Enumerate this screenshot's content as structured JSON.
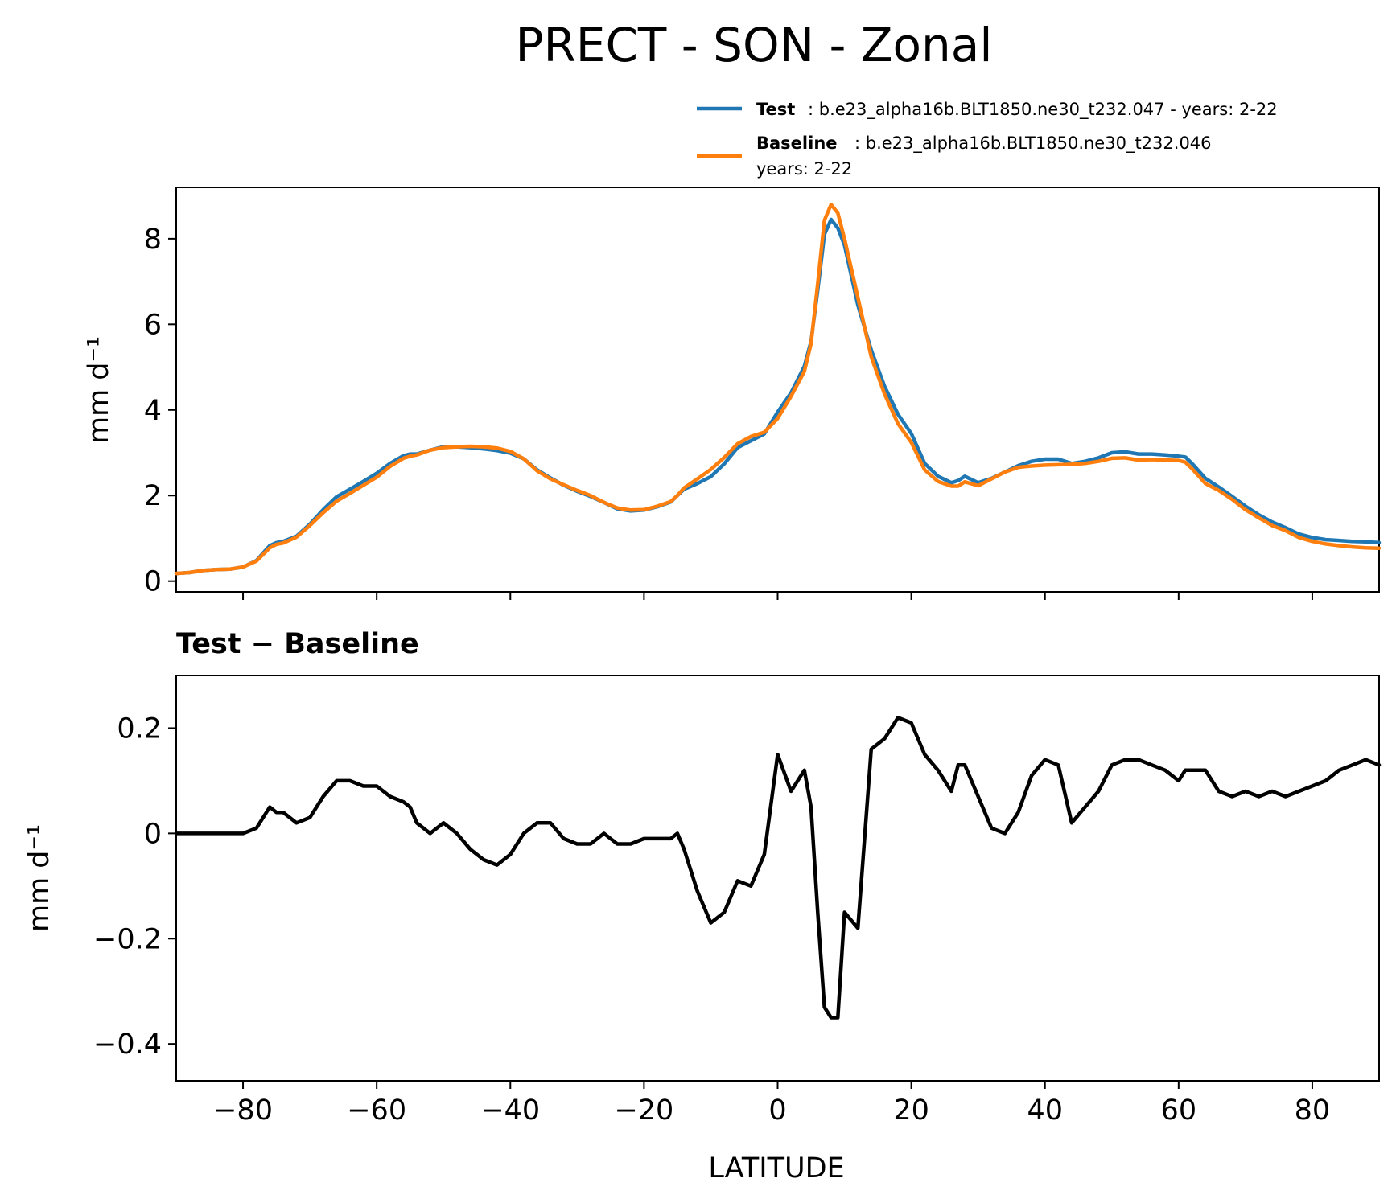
{
  "title": "PRECT - SON - Zonal",
  "legend": {
    "test": {
      "name": "Test",
      "desc": ": b.e23_alpha16b.BLT1850.ne30_t232.047 - years: 2-22"
    },
    "baseline": {
      "name": "Baseline",
      "desc": ": b.e23_alpha16b.BLT1850.ne30_t232.046",
      "desc2": "years: 2-22"
    }
  },
  "colors": {
    "test": "#1f77b4",
    "baseline": "#ff7f0e",
    "diff": "#000000"
  },
  "chart_data": [
    {
      "type": "line",
      "title": "",
      "xlabel": "",
      "ylabel": "mm d⁻¹",
      "xlim": [
        -90,
        90
      ],
      "ylim": [
        -0.25,
        9.2
      ],
      "yticks": [
        0,
        2,
        4,
        6,
        8
      ],
      "series": [
        {
          "name": "Test",
          "color": "#1f77b4",
          "x": [
            -90,
            -88,
            -86,
            -84,
            -82,
            -80,
            -78,
            -76,
            -75,
            -74,
            -72,
            -70,
            -68,
            -66,
            -64,
            -62,
            -60,
            -58,
            -56,
            -55,
            -54,
            -52,
            -50,
            -48,
            -46,
            -44,
            -42,
            -40,
            -38,
            -36,
            -34,
            -32,
            -30,
            -28,
            -26,
            -24,
            -22,
            -20,
            -18,
            -16,
            -15,
            -14,
            -12,
            -10,
            -8,
            -6,
            -4,
            -2,
            0,
            2,
            4,
            5,
            6,
            7,
            8,
            9,
            10,
            12,
            14,
            16,
            18,
            20,
            22,
            24,
            26,
            27,
            28,
            30,
            32,
            34,
            36,
            38,
            40,
            42,
            44,
            46,
            48,
            50,
            52,
            54,
            56,
            58,
            60,
            61,
            62,
            64,
            66,
            68,
            70,
            72,
            74,
            76,
            78,
            80,
            82,
            84,
            86,
            88,
            90
          ],
          "y": [
            0.18,
            0.2,
            0.25,
            0.27,
            0.28,
            0.33,
            0.48,
            0.83,
            0.9,
            0.93,
            1.05,
            1.33,
            1.67,
            1.97,
            2.15,
            2.33,
            2.52,
            2.75,
            2.93,
            2.97,
            2.97,
            3.06,
            3.14,
            3.14,
            3.12,
            3.09,
            3.05,
            2.99,
            2.86,
            2.6,
            2.41,
            2.24,
            2.1,
            1.98,
            1.84,
            1.69,
            1.64,
            1.66,
            1.74,
            1.85,
            2.0,
            2.15,
            2.28,
            2.44,
            2.74,
            3.12,
            3.28,
            3.44,
            3.95,
            4.4,
            5.02,
            5.6,
            6.8,
            8.1,
            8.45,
            8.25,
            7.85,
            6.45,
            5.4,
            4.55,
            3.9,
            3.45,
            2.75,
            2.45,
            2.3,
            2.35,
            2.45,
            2.3,
            2.4,
            2.55,
            2.7,
            2.8,
            2.85,
            2.85,
            2.75,
            2.8,
            2.88,
            3.0,
            3.02,
            2.97,
            2.97,
            2.95,
            2.92,
            2.9,
            2.75,
            2.4,
            2.2,
            1.98,
            1.75,
            1.55,
            1.38,
            1.25,
            1.1,
            1.02,
            0.97,
            0.95,
            0.93,
            0.92,
            0.9
          ]
        },
        {
          "name": "Baseline",
          "color": "#ff7f0e",
          "x": [
            -90,
            -88,
            -86,
            -84,
            -82,
            -80,
            -78,
            -76,
            -75,
            -74,
            -72,
            -70,
            -68,
            -66,
            -64,
            -62,
            -60,
            -58,
            -56,
            -55,
            -54,
            -52,
            -50,
            -48,
            -46,
            -44,
            -42,
            -40,
            -38,
            -36,
            -34,
            -32,
            -30,
            -28,
            -26,
            -24,
            -22,
            -20,
            -18,
            -16,
            -15,
            -14,
            -12,
            -10,
            -8,
            -6,
            -4,
            -2,
            0,
            2,
            4,
            5,
            6,
            7,
            8,
            9,
            10,
            12,
            14,
            16,
            18,
            20,
            22,
            24,
            26,
            27,
            28,
            30,
            32,
            34,
            36,
            38,
            40,
            42,
            44,
            46,
            48,
            50,
            52,
            54,
            56,
            58,
            60,
            61,
            62,
            64,
            66,
            68,
            70,
            72,
            74,
            76,
            78,
            80,
            82,
            84,
            86,
            88,
            90
          ],
          "y": [
            0.18,
            0.2,
            0.25,
            0.27,
            0.28,
            0.33,
            0.47,
            0.78,
            0.86,
            0.89,
            1.03,
            1.3,
            1.6,
            1.87,
            2.05,
            2.24,
            2.43,
            2.68,
            2.87,
            2.92,
            2.95,
            3.06,
            3.12,
            3.14,
            3.15,
            3.14,
            3.11,
            3.03,
            2.86,
            2.58,
            2.39,
            2.25,
            2.12,
            2.0,
            1.84,
            1.71,
            1.66,
            1.67,
            1.75,
            1.86,
            2.0,
            2.18,
            2.39,
            2.61,
            2.89,
            3.21,
            3.38,
            3.48,
            3.8,
            4.32,
            4.9,
            5.55,
            6.95,
            8.43,
            8.8,
            8.6,
            8.0,
            6.63,
            5.24,
            4.37,
            3.68,
            3.24,
            2.6,
            2.33,
            2.22,
            2.22,
            2.32,
            2.23,
            2.39,
            2.55,
            2.66,
            2.69,
            2.71,
            2.72,
            2.73,
            2.75,
            2.8,
            2.87,
            2.88,
            2.83,
            2.84,
            2.83,
            2.82,
            2.78,
            2.63,
            2.28,
            2.12,
            1.91,
            1.67,
            1.48,
            1.3,
            1.18,
            1.02,
            0.93,
            0.87,
            0.83,
            0.8,
            0.78,
            0.77
          ]
        }
      ]
    },
    {
      "type": "line",
      "title": "Test − Baseline",
      "xlabel": "LATITUDE",
      "ylabel": "mm d⁻¹",
      "xlim": [
        -90,
        90
      ],
      "ylim": [
        -0.47,
        0.3
      ],
      "yticks": [
        -0.4,
        -0.2,
        0.0,
        0.2
      ],
      "xticks": [
        -80,
        -60,
        -40,
        -20,
        0,
        20,
        40,
        60,
        80
      ],
      "series": [
        {
          "name": "Test − Baseline",
          "color": "#000000",
          "x": [
            -90,
            -88,
            -86,
            -84,
            -82,
            -80,
            -78,
            -76,
            -75,
            -74,
            -72,
            -70,
            -68,
            -66,
            -64,
            -62,
            -60,
            -58,
            -56,
            -55,
            -54,
            -52,
            -50,
            -48,
            -46,
            -44,
            -42,
            -40,
            -38,
            -36,
            -34,
            -32,
            -30,
            -28,
            -26,
            -24,
            -22,
            -20,
            -18,
            -16,
            -15,
            -14,
            -12,
            -10,
            -8,
            -6,
            -4,
            -2,
            0,
            2,
            4,
            5,
            6,
            7,
            8,
            9,
            10,
            12,
            14,
            16,
            18,
            20,
            22,
            24,
            26,
            27,
            28,
            30,
            32,
            34,
            36,
            38,
            40,
            42,
            44,
            46,
            48,
            50,
            52,
            54,
            56,
            58,
            60,
            61,
            62,
            64,
            66,
            68,
            70,
            72,
            74,
            76,
            78,
            80,
            82,
            84,
            86,
            88,
            90
          ],
          "y": [
            0.0,
            0.0,
            0.0,
            0.0,
            0.0,
            0.0,
            0.01,
            0.05,
            0.04,
            0.04,
            0.02,
            0.03,
            0.07,
            0.1,
            0.1,
            0.09,
            0.09,
            0.07,
            0.06,
            0.05,
            0.02,
            0.0,
            0.02,
            0.0,
            -0.03,
            -0.05,
            -0.06,
            -0.04,
            0.0,
            0.02,
            0.02,
            -0.01,
            -0.02,
            -0.02,
            0.0,
            -0.02,
            -0.02,
            -0.01,
            -0.01,
            -0.01,
            0.0,
            -0.03,
            -0.11,
            -0.17,
            -0.15,
            -0.09,
            -0.1,
            -0.04,
            0.15,
            0.08,
            0.12,
            0.05,
            -0.15,
            -0.33,
            -0.35,
            -0.35,
            -0.15,
            -0.18,
            0.16,
            0.18,
            0.22,
            0.21,
            0.15,
            0.12,
            0.08,
            0.13,
            0.13,
            0.07,
            0.01,
            0.0,
            0.04,
            0.11,
            0.14,
            0.13,
            0.02,
            0.05,
            0.08,
            0.13,
            0.14,
            0.14,
            0.13,
            0.12,
            0.1,
            0.12,
            0.12,
            0.12,
            0.08,
            0.07,
            0.08,
            0.07,
            0.08,
            0.07,
            0.08,
            0.09,
            0.1,
            0.12,
            0.13,
            0.14,
            0.13
          ]
        }
      ]
    }
  ]
}
